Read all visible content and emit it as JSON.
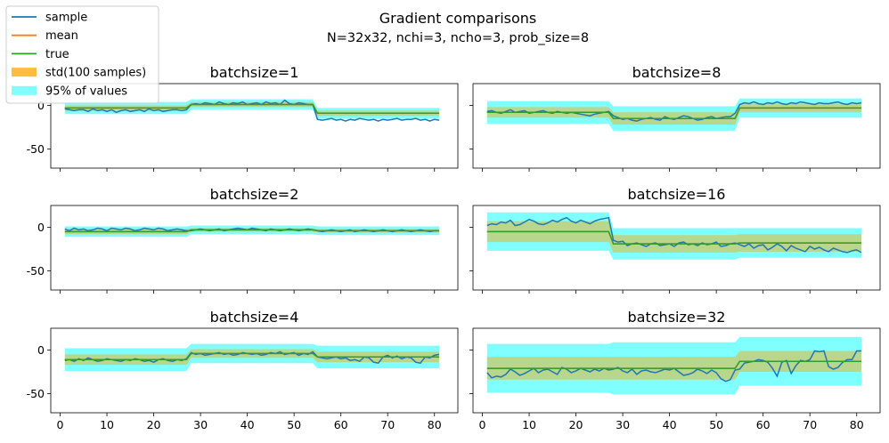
{
  "chart_data": {
    "type": "line",
    "title": "Gradient comparisons",
    "subtitle": "N=32x32, nchi=3, ncho=3, prob_size=8",
    "xlim": [
      -2,
      85
    ],
    "ylim": [
      -72,
      25
    ],
    "x_ticks": [
      0,
      10,
      20,
      30,
      40,
      50,
      60,
      70,
      80
    ],
    "y_ticks": [
      0,
      -50
    ],
    "legend": {
      "position": "top-left",
      "entries": [
        {
          "label": "sample",
          "kind": "line",
          "color": "#1f77b4"
        },
        {
          "label": "mean",
          "kind": "line",
          "color": "#ff7f0e"
        },
        {
          "label": "true",
          "kind": "line",
          "color": "#2ca02c"
        },
        {
          "label": "std(100 samples)",
          "kind": "patch",
          "color": "#ffa500"
        },
        {
          "label": "95% of values",
          "kind": "patch",
          "color": "#00ffff"
        }
      ]
    },
    "colors": {
      "sample": "#1f77b4",
      "mean": "#ff7f0e",
      "true": "#2ca02c",
      "std": "#ffa500",
      "pct95": "#00ffff"
    },
    "x_range": [
      1,
      81
    ],
    "segments": [
      [
        1,
        27
      ],
      [
        28,
        54
      ],
      [
        55,
        81
      ]
    ],
    "panels": [
      {
        "title": "batchsize=1",
        "true_levels": [
          -3,
          1,
          -9
        ],
        "std": [
          3,
          3,
          3
        ],
        "pct95": [
          7,
          6,
          6
        ],
        "sample": [
          -4,
          -5,
          -6,
          -5,
          -5,
          -7,
          -4,
          -6,
          -5,
          -7,
          -5,
          -8,
          -6,
          -5,
          -7,
          -6,
          -5,
          -7,
          -4,
          -6,
          -5,
          -7,
          -6,
          -5,
          -5,
          -6,
          -5,
          1,
          2,
          1,
          3,
          2,
          1,
          4,
          2,
          1,
          3,
          2,
          4,
          1,
          2,
          3,
          1,
          4,
          2,
          3,
          1,
          6,
          2,
          1,
          3,
          2,
          1,
          1,
          -16,
          -17,
          -16,
          -15,
          -17,
          -16,
          -18,
          -16,
          -17,
          -15,
          -16,
          -17,
          -16,
          -18,
          -16,
          -17,
          -16,
          -15,
          -17,
          -16,
          -16,
          -15,
          -17,
          -16,
          -18,
          -16,
          -17
        ]
      },
      {
        "title": "batchsize=8",
        "true_levels": [
          -8,
          -15,
          -3
        ],
        "std": [
          6,
          7,
          5
        ],
        "pct95": [
          13,
          14,
          11
        ],
        "sample": [
          -7,
          -6,
          -8,
          -9,
          -7,
          -5,
          -8,
          -7,
          -6,
          -9,
          -8,
          -7,
          -6,
          -8,
          -9,
          -7,
          -8,
          -9,
          -8,
          -9,
          -10,
          -11,
          -12,
          -10,
          -9,
          -8,
          -7,
          -12,
          -14,
          -16,
          -15,
          -17,
          -18,
          -16,
          -15,
          -14,
          -16,
          -17,
          -13,
          -15,
          -16,
          -14,
          -12,
          -13,
          -15,
          -17,
          -16,
          -14,
          -13,
          -15,
          -14,
          -13,
          -13,
          -9,
          1,
          3,
          2,
          4,
          2,
          1,
          3,
          2,
          4,
          2,
          1,
          3,
          2,
          4,
          3,
          2,
          1,
          3,
          2,
          2,
          3,
          4,
          2,
          1,
          3,
          2,
          3
        ]
      },
      {
        "title": "batchsize=2",
        "true_levels": [
          -5,
          -3,
          -4
        ],
        "std": [
          3,
          2,
          2
        ],
        "pct95": [
          6,
          5,
          5
        ],
        "sample": [
          -2,
          -4,
          -1,
          -3,
          -2,
          -4,
          -3,
          -1,
          -2,
          -4,
          -1,
          -2,
          -3,
          -1,
          -2,
          -4,
          -3,
          -1,
          -2,
          -3,
          -1,
          -2,
          -4,
          -3,
          -2,
          -3,
          -4,
          -4,
          -3,
          -2,
          -3,
          -4,
          -3,
          -2,
          -4,
          -3,
          -2,
          -1,
          -2,
          -3,
          -1,
          -2,
          -3,
          -4,
          -2,
          -3,
          -4,
          -3,
          -2,
          -3,
          -4,
          -3,
          -2,
          -3,
          -4,
          -5,
          -4,
          -3,
          -4,
          -5,
          -4,
          -3,
          -5,
          -4,
          -3,
          -4,
          -5,
          -4,
          -3,
          -4,
          -5,
          -4,
          -3,
          -4,
          -5,
          -4,
          -3,
          -4,
          -5,
          -4,
          -4
        ]
      },
      {
        "title": "batchsize=16",
        "true_levels": [
          -5,
          -19,
          -18
        ],
        "std": [
          12,
          10,
          10
        ],
        "pct95": [
          22,
          18,
          17
        ],
        "sample": [
          2,
          4,
          3,
          6,
          5,
          8,
          2,
          3,
          6,
          9,
          7,
          4,
          3,
          5,
          8,
          6,
          9,
          11,
          7,
          5,
          8,
          6,
          4,
          7,
          9,
          10,
          11,
          -15,
          -17,
          -16,
          -21,
          -19,
          -18,
          -20,
          -22,
          -19,
          -18,
          -21,
          -20,
          -19,
          -22,
          -18,
          -17,
          -20,
          -19,
          -21,
          -18,
          -20,
          -19,
          -17,
          -22,
          -21,
          -19,
          -18,
          -20,
          -22,
          -19,
          -24,
          -21,
          -20,
          -26,
          -23,
          -19,
          -22,
          -27,
          -21,
          -24,
          -26,
          -28,
          -22,
          -25,
          -23,
          -26,
          -28,
          -24,
          -26,
          -28,
          -29,
          -27,
          -26,
          -29
        ]
      },
      {
        "title": "batchsize=4",
        "true_levels": [
          -11,
          -4,
          -8
        ],
        "std": [
          6,
          5,
          6
        ],
        "pct95": [
          13,
          11,
          13
        ],
        "sample": [
          -12,
          -11,
          -13,
          -10,
          -12,
          -9,
          -11,
          -13,
          -12,
          -10,
          -11,
          -12,
          -13,
          -11,
          -12,
          -10,
          -11,
          -13,
          -12,
          -14,
          -11,
          -10,
          -12,
          -13,
          -11,
          -12,
          -10,
          -3,
          -5,
          -4,
          -6,
          -5,
          -4,
          -3,
          -5,
          -4,
          -6,
          -5,
          -3,
          -4,
          -5,
          -4,
          -6,
          -5,
          -3,
          -4,
          -2,
          -5,
          -4,
          -3,
          -6,
          -4,
          -5,
          -2,
          -8,
          -9,
          -10,
          -9,
          -8,
          -10,
          -9,
          -12,
          -11,
          -13,
          -8,
          -9,
          -14,
          -15,
          -8,
          -6,
          -9,
          -7,
          -10,
          -8,
          -9,
          -14,
          -15,
          -8,
          -9,
          -6,
          -5
        ]
      },
      {
        "title": "batchsize=32",
        "true_levels": [
          -21,
          -21,
          -13
        ],
        "std": [
          13,
          13,
          12
        ],
        "pct95": [
          28,
          30,
          28
        ],
        "sample": [
          -26,
          -32,
          -30,
          -31,
          -28,
          -22,
          -25,
          -29,
          -27,
          -24,
          -21,
          -26,
          -23,
          -22,
          -25,
          -28,
          -20,
          -22,
          -26,
          -24,
          -21,
          -23,
          -25,
          -22,
          -24,
          -21,
          -23,
          -22,
          -20,
          -24,
          -26,
          -22,
          -28,
          -24,
          -23,
          -25,
          -26,
          -24,
          -22,
          -23,
          -21,
          -25,
          -29,
          -28,
          -26,
          -22,
          -24,
          -27,
          -23,
          -26,
          -33,
          -36,
          -34,
          -23,
          -22,
          -15,
          -14,
          -13,
          -11,
          -12,
          -14,
          -21,
          -30,
          -14,
          -12,
          -27,
          -18,
          -12,
          -13,
          -11,
          -1,
          -2,
          -1,
          -19,
          -22,
          -20,
          -14,
          -11,
          -11,
          -1,
          -1
        ]
      }
    ]
  }
}
